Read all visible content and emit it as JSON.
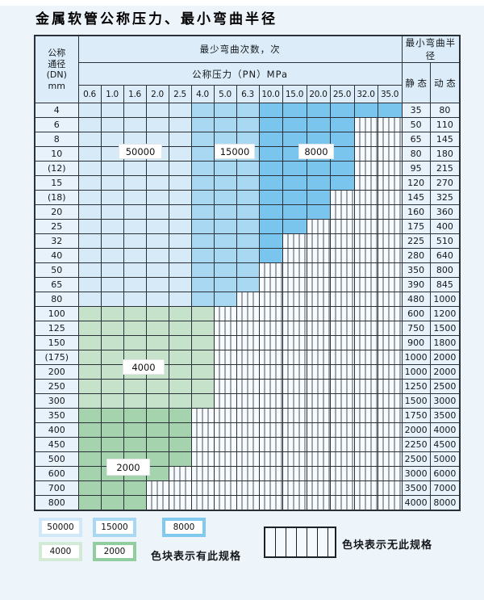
{
  "page": {
    "title": "金属软管公称压力、最小弯曲半径"
  },
  "table": {
    "header": {
      "dn_lines": [
        "公称",
        "通径",
        "(DN)",
        "mm"
      ],
      "bend_cycles_label": "最少弯曲次数，次",
      "pressure_label": "公称压力（PN）MPa",
      "pressure_values": [
        "0.6",
        "1.0",
        "1.6",
        "2.0",
        "2.5",
        "4.0",
        "5.0",
        "6.3",
        "10.0",
        "15.0",
        "20.0",
        "25.0",
        "32.0",
        "35.0"
      ],
      "radius_label": "最小弯曲半径",
      "static_label": "静 态",
      "dynamic_label": "动 态"
    },
    "rows": [
      {
        "dn": "4",
        "static": "35",
        "dynamic": "80",
        "cells": [
          [
            "50000",
            5
          ],
          [
            "15000",
            3
          ],
          [
            "8000",
            6
          ]
        ]
      },
      {
        "dn": "6",
        "static": "50",
        "dynamic": "110",
        "cells": [
          [
            "50000",
            5
          ],
          [
            "15000",
            3
          ],
          [
            "8000",
            4
          ],
          [
            "none",
            2
          ]
        ]
      },
      {
        "dn": "8",
        "static": "65",
        "dynamic": "145",
        "cells": [
          [
            "50000",
            5
          ],
          [
            "15000",
            3
          ],
          [
            "8000",
            4
          ],
          [
            "none",
            2
          ]
        ]
      },
      {
        "dn": "10",
        "static": "80",
        "dynamic": "180",
        "cells": [
          [
            "50000",
            5
          ],
          [
            "15000",
            3
          ],
          [
            "8000",
            4
          ],
          [
            "none",
            2
          ]
        ]
      },
      {
        "dn": "(12)",
        "static": "95",
        "dynamic": "215",
        "cells": [
          [
            "50000",
            5
          ],
          [
            "15000",
            3
          ],
          [
            "8000",
            4
          ],
          [
            "none",
            2
          ]
        ]
      },
      {
        "dn": "15",
        "static": "120",
        "dynamic": "270",
        "cells": [
          [
            "50000",
            5
          ],
          [
            "15000",
            3
          ],
          [
            "8000",
            4
          ],
          [
            "none",
            2
          ]
        ]
      },
      {
        "dn": "(18)",
        "static": "145",
        "dynamic": "325",
        "cells": [
          [
            "50000",
            5
          ],
          [
            "15000",
            3
          ],
          [
            "8000",
            3
          ],
          [
            "none",
            3
          ]
        ]
      },
      {
        "dn": "20",
        "static": "160",
        "dynamic": "360",
        "cells": [
          [
            "50000",
            5
          ],
          [
            "15000",
            3
          ],
          [
            "8000",
            3
          ],
          [
            "none",
            3
          ]
        ]
      },
      {
        "dn": "25",
        "static": "175",
        "dynamic": "400",
        "cells": [
          [
            "50000",
            5
          ],
          [
            "15000",
            3
          ],
          [
            "8000",
            2
          ],
          [
            "none",
            4
          ]
        ]
      },
      {
        "dn": "32",
        "static": "225",
        "dynamic": "510",
        "cells": [
          [
            "50000",
            5
          ],
          [
            "15000",
            3
          ],
          [
            "8000",
            1
          ],
          [
            "none",
            5
          ]
        ]
      },
      {
        "dn": "40",
        "static": "280",
        "dynamic": "640",
        "cells": [
          [
            "50000",
            5
          ],
          [
            "15000",
            3
          ],
          [
            "8000",
            1
          ],
          [
            "none",
            5
          ]
        ]
      },
      {
        "dn": "50",
        "static": "350",
        "dynamic": "800",
        "cells": [
          [
            "50000",
            5
          ],
          [
            "15000",
            3
          ],
          [
            "none",
            6
          ]
        ]
      },
      {
        "dn": "65",
        "static": "390",
        "dynamic": "845",
        "cells": [
          [
            "50000",
            5
          ],
          [
            "15000",
            3
          ],
          [
            "none",
            6
          ]
        ]
      },
      {
        "dn": "80",
        "static": "480",
        "dynamic": "1000",
        "cells": [
          [
            "50000",
            5
          ],
          [
            "15000",
            2
          ],
          [
            "none",
            7
          ]
        ]
      },
      {
        "dn": "100",
        "static": "600",
        "dynamic": "1200",
        "cells": [
          [
            "4000",
            6
          ],
          [
            "none",
            8
          ]
        ]
      },
      {
        "dn": "125",
        "static": "750",
        "dynamic": "1500",
        "cells": [
          [
            "4000",
            6
          ],
          [
            "none",
            8
          ]
        ]
      },
      {
        "dn": "150",
        "static": "900",
        "dynamic": "1800",
        "cells": [
          [
            "4000",
            6
          ],
          [
            "none",
            8
          ]
        ]
      },
      {
        "dn": "(175)",
        "static": "1000",
        "dynamic": "2000",
        "cells": [
          [
            "4000",
            6
          ],
          [
            "none",
            8
          ]
        ]
      },
      {
        "dn": "200",
        "static": "1000",
        "dynamic": "2000",
        "cells": [
          [
            "4000",
            6
          ],
          [
            "none",
            8
          ]
        ]
      },
      {
        "dn": "250",
        "static": "1250",
        "dynamic": "2500",
        "cells": [
          [
            "4000",
            6
          ],
          [
            "none",
            8
          ]
        ]
      },
      {
        "dn": "300",
        "static": "1500",
        "dynamic": "3000",
        "cells": [
          [
            "4000",
            6
          ],
          [
            "none",
            8
          ]
        ]
      },
      {
        "dn": "350",
        "static": "1750",
        "dynamic": "3500",
        "cells": [
          [
            "2000",
            5
          ],
          [
            "none",
            9
          ]
        ]
      },
      {
        "dn": "400",
        "static": "2000",
        "dynamic": "4000",
        "cells": [
          [
            "2000",
            5
          ],
          [
            "none",
            9
          ]
        ]
      },
      {
        "dn": "450",
        "static": "2250",
        "dynamic": "4500",
        "cells": [
          [
            "2000",
            5
          ],
          [
            "none",
            9
          ]
        ]
      },
      {
        "dn": "500",
        "static": "2500",
        "dynamic": "5000",
        "cells": [
          [
            "2000",
            5
          ],
          [
            "none",
            9
          ]
        ]
      },
      {
        "dn": "600",
        "static": "3000",
        "dynamic": "6000",
        "cells": [
          [
            "2000",
            4
          ],
          [
            "none",
            10
          ]
        ]
      },
      {
        "dn": "700",
        "static": "3500",
        "dynamic": "7000",
        "cells": [
          [
            "2000",
            3
          ],
          [
            "none",
            11
          ]
        ]
      },
      {
        "dn": "800",
        "static": "4000",
        "dynamic": "8000",
        "cells": [
          [
            "2000",
            3
          ],
          [
            "none",
            11
          ]
        ]
      }
    ]
  },
  "overlay_labels": [
    {
      "text": "50000"
    },
    {
      "text": "15000"
    },
    {
      "text": "8000"
    },
    {
      "text": "4000"
    },
    {
      "text": "2000"
    }
  ],
  "legend": {
    "swatches": [
      {
        "label": "50000",
        "color": "#d0e8f8"
      },
      {
        "label": "15000",
        "color": "#a9d8f3"
      },
      {
        "label": "8000",
        "color": "#82c9ef"
      },
      {
        "label": "4000",
        "color": "#d3ead7"
      },
      {
        "label": "2000",
        "color": "#92cda0"
      }
    ],
    "has_spec_text": "色块表示有此规格",
    "no_spec_text": "色块表示无此规格"
  },
  "colors": {
    "page_bg": "#edf4fa",
    "table_border": "#2b3138",
    "header_bg": "#dcedf9",
    "side_bg": "#e7f2fb",
    "hatch_line": "#49525c",
    "rating_50000": "#d6eaf8",
    "rating_15000": "#a9d8f3",
    "rating_8000": "#79c5ed",
    "rating_4000": "#c6e2ca",
    "rating_2000": "#a4d3ad"
  }
}
